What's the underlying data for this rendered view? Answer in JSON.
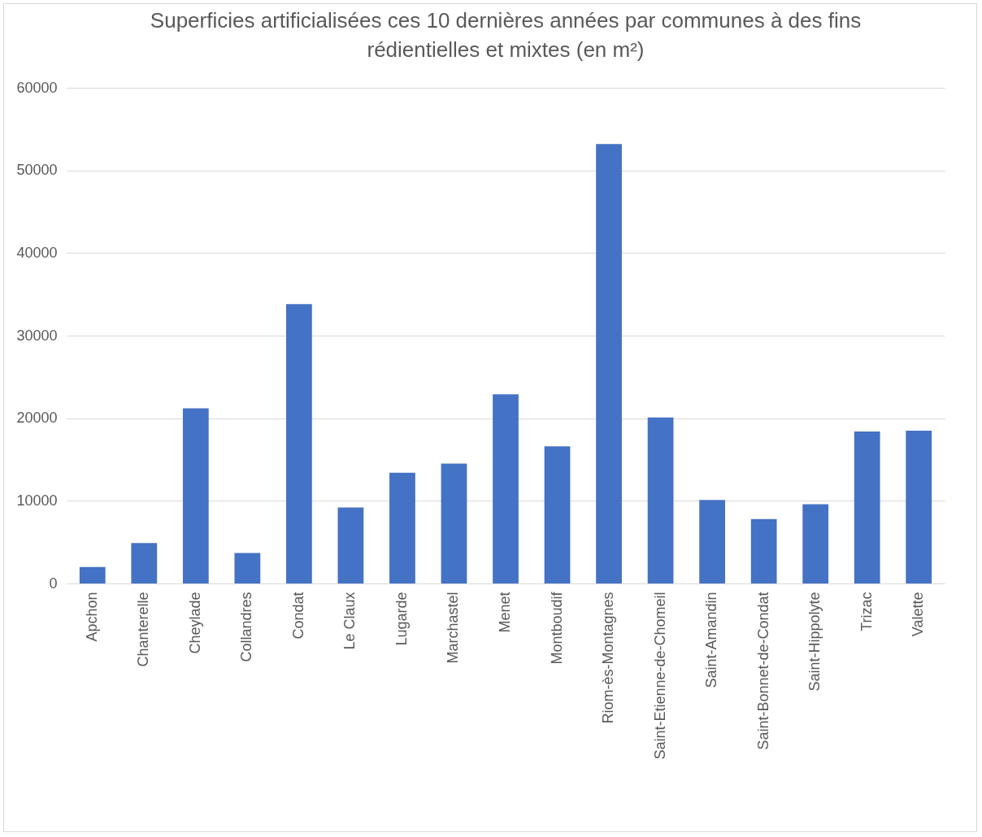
{
  "chart_data": {
    "type": "bar",
    "title": "Superficies artificialisées ces 10 dernières années par communes à des fins rédientielles et mixtes (en m²)",
    "categories": [
      "Apchon",
      "Chanterelle",
      "Cheylade",
      "Collandres",
      "Condat",
      "Le Claux",
      "Lugarde",
      "Marchastel",
      "Menet",
      "Montboudif",
      "Riom-ès-Montagnes",
      "Saint-Etienne-de-Chomeil",
      "Saint-Amandin",
      "Saint-Bonnet-de-Condat",
      "Saint-Hippolyte",
      "Trizac",
      "Valette"
    ],
    "values": [
      2000,
      4900,
      21200,
      3700,
      33800,
      9200,
      13400,
      14500,
      22900,
      16600,
      53200,
      20100,
      10100,
      7800,
      9600,
      18400,
      18500
    ],
    "color": "#4472c4",
    "ylim": [
      0,
      60000
    ],
    "yticks": [
      0,
      10000,
      20000,
      30000,
      40000,
      50000,
      60000
    ],
    "grid": "y"
  }
}
